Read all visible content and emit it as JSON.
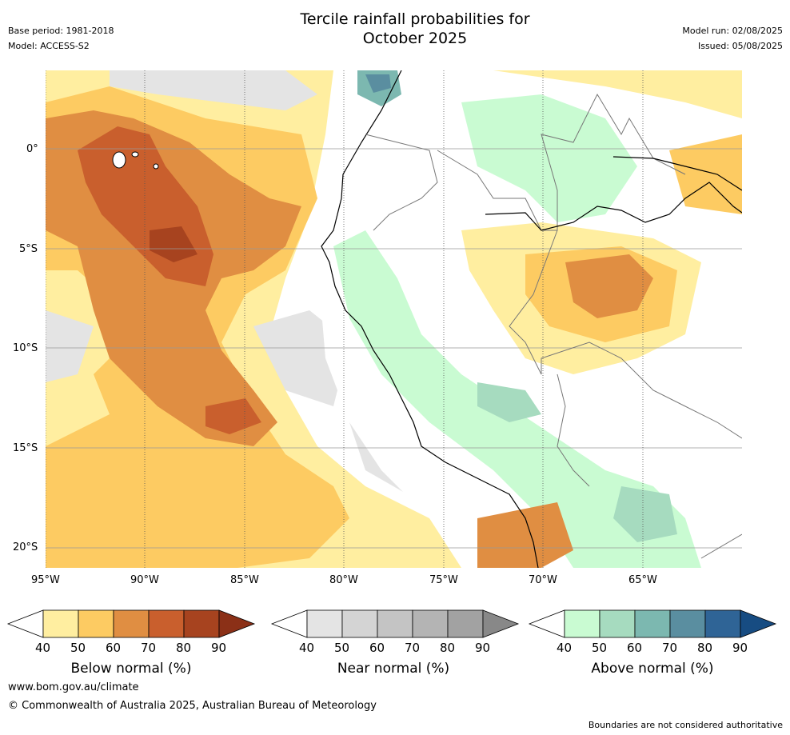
{
  "header": {
    "title_line1": "Tercile rainfall probabilities for",
    "title_line2": "October 2025",
    "base_period": "Base period: 1981-2018",
    "model": "Model: ACCESS-S2",
    "model_run": "Model run: 02/08/2025",
    "issued": "Issued: 05/08/2025"
  },
  "axes": {
    "lat_labels": [
      "0°",
      "5°S",
      "10°S",
      "15°S",
      "20°S"
    ],
    "lon_labels": [
      "95°W",
      "90°W",
      "85°W",
      "80°W",
      "75°W",
      "70°W",
      "65°W"
    ]
  },
  "colorbars": [
    {
      "name": "Below normal (%)",
      "ticks": [
        "40",
        "50",
        "60",
        "70",
        "80",
        "90"
      ],
      "colors": [
        "#ffeea0",
        "#fdcb62",
        "#e08e42",
        "#c95f2d",
        "#a7431f",
        "#8b3017"
      ]
    },
    {
      "name": "Near normal (%)",
      "ticks": [
        "40",
        "50",
        "60",
        "70",
        "80",
        "90"
      ],
      "colors": [
        "#e4e4e4",
        "#d4d4d4",
        "#c4c4c4",
        "#b4b4b4",
        "#a2a2a2",
        "#888888"
      ]
    },
    {
      "name": "Above normal (%)",
      "ticks": [
        "40",
        "50",
        "60",
        "70",
        "80",
        "90"
      ],
      "colors": [
        "#c9fbd2",
        "#a6dbbf",
        "#7cb8b0",
        "#5a8ea0",
        "#2f6496",
        "#174c82"
      ]
    }
  ],
  "footer": {
    "website": "www.bom.gov.au/climate",
    "copyright": "© Commonwealth of Australia 2025, Australian Bureau of Meteorology",
    "disclaimer": "Boundaries are not considered authoritative"
  }
}
